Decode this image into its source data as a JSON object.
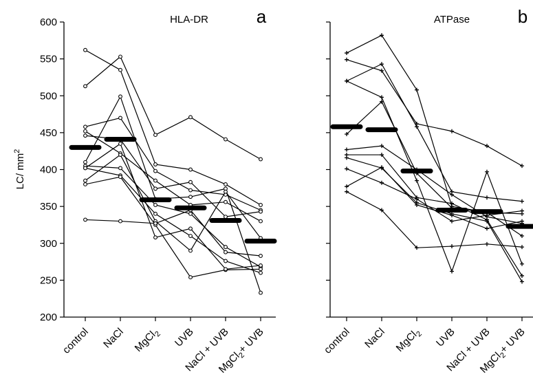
{
  "chart_data": [
    {
      "type": "line",
      "title": "HLA-DR",
      "panel_letter": "a",
      "ylabel": "LC/ mm",
      "ylabel_superscript": "2",
      "xlabel": "",
      "ylim": [
        200,
        600
      ],
      "yticks": [
        200,
        250,
        300,
        350,
        400,
        450,
        500,
        550,
        600
      ],
      "categories": [
        "control",
        "NaCl",
        "MgCl",
        "UVB",
        "NaCl + UVB",
        "MgCl + UVB"
      ],
      "category_subscripts": [
        "",
        "",
        "2",
        "",
        "",
        "2"
      ],
      "marker": "open-circle",
      "series": [
        {
          "values": [
            562,
            535,
            407,
            400,
            380,
            352
          ]
        },
        {
          "values": [
            513,
            553,
            447,
            471,
            441,
            414
          ]
        },
        {
          "values": [
            458,
            470,
            398,
            372,
            366,
            345
          ]
        },
        {
          "values": [
            452,
            422,
            385,
            352,
            356,
            330
          ]
        },
        {
          "values": [
            446,
            441,
            374,
            383,
            336,
            343
          ]
        },
        {
          "values": [
            410,
            499,
            360,
            363,
            374,
            233
          ]
        },
        {
          "values": [
            405,
            402,
            352,
            340,
            295,
            268
          ]
        },
        {
          "values": [
            402,
            392,
            340,
            310,
            276,
            260
          ]
        },
        {
          "values": [
            385,
            420,
            330,
            290,
            370,
            307
          ]
        },
        {
          "values": [
            380,
            390,
            325,
            254,
            264,
            265
          ]
        },
        {
          "values": [
            332,
            330,
            327,
            345,
            288,
            283
          ]
        },
        {
          "values": [
            402,
            435,
            308,
            320,
            265,
            270
          ]
        }
      ],
      "means": [
        430,
        441,
        359,
        348,
        331,
        303
      ]
    },
    {
      "type": "line",
      "title": "ATPase",
      "panel_letter": "b",
      "ylim": [
        200,
        600
      ],
      "yticks": [
        200,
        250,
        300,
        350,
        400,
        450,
        500,
        550,
        600
      ],
      "categories": [
        "control",
        "NaCl",
        "MgCl",
        "UVB",
        "NaCl + UVB",
        "MgCl + UVB"
      ],
      "category_subscripts": [
        "",
        "",
        "2",
        "",
        "",
        "2"
      ],
      "marker": "plus",
      "series": [
        {
          "values": [
            558,
            582,
            508,
            350,
            342,
            310
          ]
        },
        {
          "values": [
            549,
            534,
            462,
            452,
            432,
            405
          ]
        },
        {
          "values": [
            520,
            543,
            458,
            370,
            362,
            357
          ]
        },
        {
          "values": [
            520,
            498,
            385,
            262,
            397,
            272
          ]
        },
        {
          "values": [
            448,
            492,
            395,
            348,
            342,
            340
          ]
        },
        {
          "values": [
            427,
            432,
            400,
            366,
            336,
            327
          ]
        },
        {
          "values": [
            420,
            420,
            362,
            354,
            332,
            256
          ]
        },
        {
          "values": [
            416,
            402,
            355,
            340,
            330,
            248
          ]
        },
        {
          "values": [
            401,
            382,
            360,
            330,
            338,
            344
          ]
        },
        {
          "values": [
            377,
            403,
            352,
            338,
            320,
            330
          ]
        },
        {
          "values": [
            370,
            345,
            294,
            296,
            299,
            295
          ]
        }
      ],
      "means": [
        458,
        454,
        398,
        345,
        343,
        323
      ]
    }
  ]
}
